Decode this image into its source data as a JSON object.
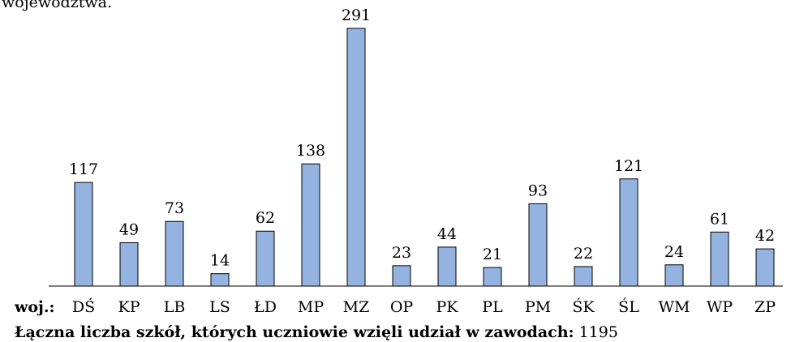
{
  "intro_text": "województwa.",
  "chart_data": {
    "type": "bar",
    "categories": [
      "DŚ",
      "KP",
      "LB",
      "LS",
      "ŁD",
      "MP",
      "MZ",
      "OP",
      "PK",
      "PL",
      "PM",
      "ŚK",
      "ŚL",
      "WM",
      "WP",
      "ZP"
    ],
    "values": [
      117,
      49,
      73,
      14,
      62,
      138,
      291,
      23,
      44,
      21,
      93,
      22,
      121,
      24,
      61,
      42
    ],
    "color": "#95b3e0",
    "x_label": "woj.:"
  },
  "footer": {
    "label": "Łączna liczba szkół, których uczniowie wzięli udział w zawodach:",
    "total": 1195
  }
}
